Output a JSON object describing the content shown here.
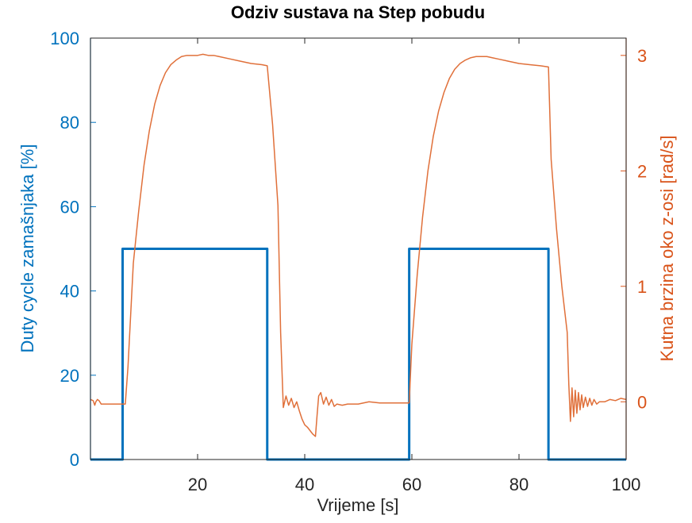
{
  "chart_data": {
    "type": "line",
    "title": "Odziv sustava na Step pobudu",
    "xlabel": "Vrijeme [s]",
    "ylabel_left": "Duty cycle zamašnjaka [%]",
    "ylabel_right": "Kutna brzina oko z-osi [rad/s]",
    "xlim": [
      0,
      100
    ],
    "ylim_left": [
      0,
      100
    ],
    "ylim_right": [
      -0.5,
      3.15
    ],
    "x_ticks": [
      20,
      40,
      60,
      80,
      100
    ],
    "y_ticks_left": [
      0,
      20,
      40,
      60,
      80,
      100
    ],
    "y_ticks_right": [
      0,
      1,
      2,
      3
    ],
    "grid": false,
    "colors": {
      "left_axis": "#0072BD",
      "right_axis": "#D95319",
      "duty_line": "#0072BD",
      "speed_line": "#E0703A",
      "axes_box": "#262626",
      "title": "#000000"
    },
    "series": [
      {
        "axis": "left",
        "x": [
          0,
          6,
          6,
          33,
          33,
          59.5,
          59.5,
          85.5,
          85.5,
          100
        ],
        "y": [
          0,
          0,
          50,
          50,
          0,
          0,
          50,
          50,
          0,
          0
        ]
      },
      {
        "axis": "right",
        "x": [
          0,
          0.5,
          0.8,
          1.0,
          1.3,
          1.6,
          2.0,
          3.0,
          4.0,
          5.0,
          6.0,
          6.5,
          7.0,
          7.5,
          8.0,
          9.0,
          10.0,
          11.0,
          12.0,
          13.0,
          14.0,
          15.0,
          16.0,
          17.0,
          18.0,
          19.0,
          20.0,
          21.0,
          22.0,
          23.0,
          24.0,
          26.0,
          28.0,
          30.0,
          32.0,
          33.0,
          34.0,
          35.0,
          35.5,
          36.0,
          36.5,
          37.0,
          37.5,
          38.0,
          38.5,
          39.0,
          39.5,
          40.0,
          40.5,
          41.0,
          41.5,
          42.0,
          42.3,
          42.6,
          43.0,
          43.5,
          44.0,
          44.5,
          45.0,
          45.5,
          46.0,
          47.0,
          48.0,
          49.0,
          50.0,
          52.0,
          54.0,
          56.0,
          58.0,
          59.5,
          60.0,
          61.0,
          62.0,
          63.0,
          64.0,
          65.0,
          66.0,
          67.0,
          68.0,
          69.0,
          70.0,
          71.0,
          72.0,
          73.0,
          74.0,
          75.0,
          76.0,
          78.0,
          80.0,
          82.0,
          84.0,
          85.5,
          86.0,
          87.0,
          88.0,
          89.0,
          89.3,
          89.6,
          89.9,
          90.2,
          90.5,
          90.8,
          91.1,
          91.4,
          91.7,
          92.0,
          92.4,
          92.8,
          93.2,
          93.6,
          94.0,
          94.5,
          95.0,
          96.0,
          97.0,
          98.0,
          99.0,
          100.0
        ],
        "y": [
          0.02,
          0.01,
          -0.03,
          0.0,
          0.02,
          0.01,
          -0.02,
          -0.02,
          -0.02,
          -0.02,
          -0.02,
          -0.02,
          0.3,
          0.75,
          1.2,
          1.65,
          2.05,
          2.35,
          2.58,
          2.74,
          2.85,
          2.92,
          2.96,
          2.99,
          3.0,
          3.0,
          3.0,
          3.01,
          3.0,
          3.0,
          2.99,
          2.97,
          2.95,
          2.93,
          2.92,
          2.91,
          2.4,
          1.7,
          0.6,
          -0.05,
          0.05,
          -0.03,
          0.03,
          -0.05,
          0.0,
          -0.08,
          -0.15,
          -0.2,
          -0.22,
          -0.25,
          -0.28,
          -0.3,
          -0.12,
          0.05,
          0.08,
          -0.02,
          0.04,
          -0.03,
          0.02,
          -0.04,
          -0.02,
          -0.03,
          -0.02,
          -0.02,
          -0.02,
          0.0,
          -0.01,
          -0.01,
          -0.01,
          -0.01,
          0.5,
          1.1,
          1.6,
          2.0,
          2.3,
          2.52,
          2.68,
          2.8,
          2.88,
          2.93,
          2.96,
          2.98,
          2.99,
          2.99,
          2.99,
          2.98,
          2.97,
          2.95,
          2.93,
          2.92,
          2.91,
          2.9,
          2.1,
          1.5,
          1.0,
          0.6,
          0.15,
          -0.17,
          0.12,
          -0.13,
          0.1,
          -0.1,
          0.08,
          -0.07,
          0.06,
          -0.05,
          0.04,
          -0.04,
          0.03,
          -0.03,
          0.02,
          -0.02,
          0.0,
          0.0,
          0.02,
          0.01,
          0.03,
          0.02
        ]
      }
    ]
  }
}
